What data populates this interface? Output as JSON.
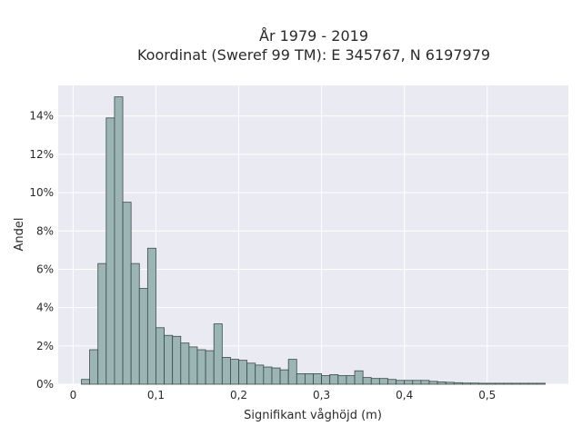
{
  "chart_data": {
    "type": "bar",
    "title_line1": "År 1979 - 2019",
    "title_line2": "Koordinat (Sweref 99 TM): E 345767, N 6197979",
    "xlabel": "Signifikant våghöjd (m)",
    "ylabel": "Andel",
    "x_ticks": [
      {
        "value": 0,
        "label": "0"
      },
      {
        "value": 0.1,
        "label": "0,1"
      },
      {
        "value": 0.2,
        "label": "0,2"
      },
      {
        "value": 0.3,
        "label": "0,3"
      },
      {
        "value": 0.4,
        "label": "0,4"
      },
      {
        "value": 0.5,
        "label": "0,5"
      }
    ],
    "y_ticks": [
      {
        "value": 0,
        "label": "0%"
      },
      {
        "value": 2,
        "label": "2%"
      },
      {
        "value": 4,
        "label": "4%"
      },
      {
        "value": 6,
        "label": "6%"
      },
      {
        "value": 8,
        "label": "8%"
      },
      {
        "value": 10,
        "label": "10%"
      },
      {
        "value": 12,
        "label": "12%"
      },
      {
        "value": 14,
        "label": "14%"
      }
    ],
    "xlim": [
      -0.018,
      0.598
    ],
    "ylim": [
      0,
      15.6
    ],
    "bin_width": 0.01,
    "bin_start": 0.01,
    "values": [
      0.25,
      1.8,
      6.3,
      13.9,
      15.0,
      9.5,
      6.3,
      5.0,
      7.1,
      2.95,
      2.55,
      2.5,
      2.15,
      1.95,
      1.8,
      1.75,
      3.15,
      1.4,
      1.3,
      1.25,
      1.1,
      1.0,
      0.9,
      0.85,
      0.75,
      1.3,
      0.55,
      0.55,
      0.55,
      0.45,
      0.5,
      0.45,
      0.45,
      0.7,
      0.35,
      0.3,
      0.3,
      0.25,
      0.2,
      0.2,
      0.2,
      0.2,
      0.15,
      0.12,
      0.1,
      0.08,
      0.06,
      0.06,
      0.05,
      0.05,
      0.05,
      0.05,
      0.05,
      0.05,
      0.05,
      0.05
    ],
    "colors": {
      "bar_fill": "#9ab5b3",
      "bar_stroke": "#3c4a4a",
      "plot_background": "#eaeaf2",
      "grid": "#ffffff"
    },
    "grid": true
  }
}
